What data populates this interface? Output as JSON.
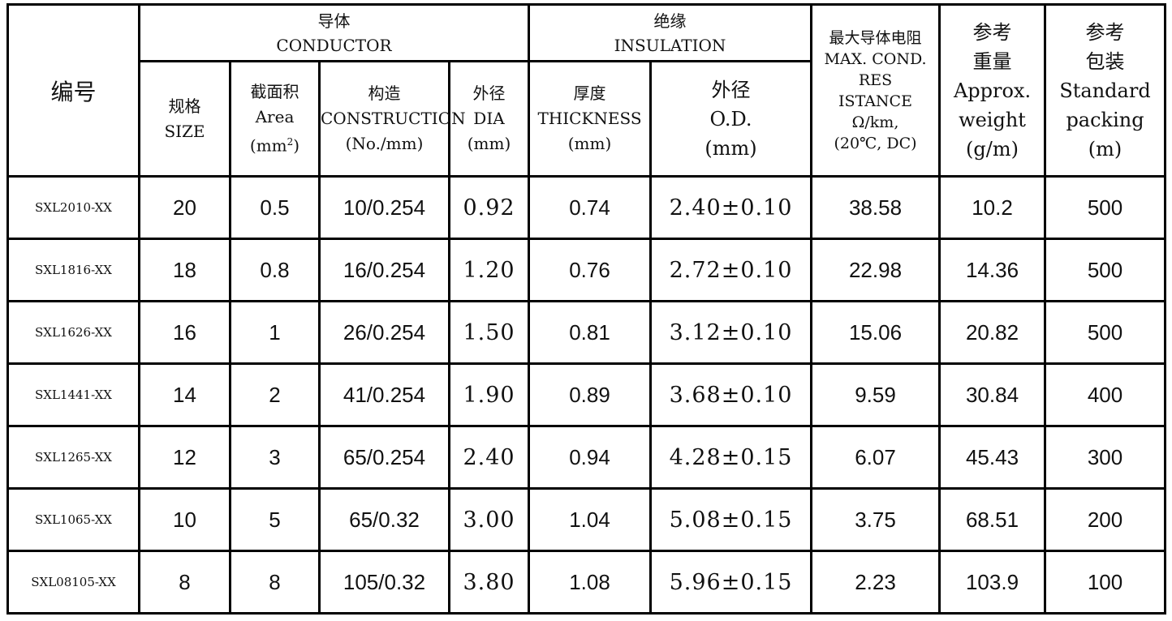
{
  "headers": {
    "code": "编号",
    "conductor": {
      "zh": "导体",
      "en": "CONDUCTOR"
    },
    "insulation": {
      "zh": "绝缘",
      "en": "INSULATION"
    },
    "resistance": {
      "line1": "最大导体电阻",
      "line2": "MAX. COND. RES",
      "line3": "ISTANCE",
      "line4": "Ω/km,",
      "line5": "(20℃, DC)"
    },
    "weight": {
      "line1": "参考",
      "line2": "重量",
      "line3": "Approx.",
      "line4": "weight",
      "line5": "(g/m)"
    },
    "packing": {
      "line1": "参考",
      "line2": "包装",
      "line3": "Standard",
      "line4": "packing",
      "line5": "(m)"
    },
    "size": {
      "zh": "规格",
      "en": "SIZE"
    },
    "area": {
      "zh": "截面积",
      "en": "Area",
      "unit_base": "(mm",
      "unit_sup": "2",
      "unit_close": ")"
    },
    "construction": {
      "zh": "构造",
      "en": "CONSTRUCTION",
      "unit": "(No./mm)"
    },
    "dia": {
      "zh": "外径",
      "en": "DIA",
      "unit": "(mm)"
    },
    "thickness": {
      "zh": "厚度",
      "en": "THICKNESS",
      "unit": "(mm)"
    },
    "od": {
      "zh": "外径",
      "en": "O.D.",
      "unit": "(mm)"
    }
  },
  "rows": [
    {
      "code": "SXL2010-XX",
      "size": "20",
      "area": "0.5",
      "construction": "10/0.254",
      "dia": "0.92",
      "thickness": "0.74",
      "od": "2.40±0.10",
      "resistance": "38.58",
      "weight": "10.2",
      "packing": "500"
    },
    {
      "code": "SXL1816-XX",
      "size": "18",
      "area": "0.8",
      "construction": "16/0.254",
      "dia": "1.20",
      "thickness": "0.76",
      "od": "2.72±0.10",
      "resistance": "22.98",
      "weight": "14.36",
      "packing": "500"
    },
    {
      "code": "SXL1626-XX",
      "size": "16",
      "area": "1",
      "construction": "26/0.254",
      "dia": "1.50",
      "thickness": "0.81",
      "od": "3.12±0.10",
      "resistance": "15.06",
      "weight": "20.82",
      "packing": "500"
    },
    {
      "code": "SXL1441-XX",
      "size": "14",
      "area": "2",
      "construction": "41/0.254",
      "dia": "1.90",
      "thickness": "0.89",
      "od": "3.68±0.10",
      "resistance": "9.59",
      "weight": "30.84",
      "packing": "400"
    },
    {
      "code": "SXL1265-XX",
      "size": "12",
      "area": "3",
      "construction": "65/0.254",
      "dia": "2.40",
      "thickness": "0.94",
      "od": "4.28±0.15",
      "resistance": "6.07",
      "weight": "45.43",
      "packing": "300"
    },
    {
      "code": "SXL1065-XX",
      "size": "10",
      "area": "5",
      "construction": "65/0.32",
      "dia": "3.00",
      "thickness": "1.04",
      "od": "5.08±0.15",
      "resistance": "3.75",
      "weight": "68.51",
      "packing": "200"
    },
    {
      "code": "SXL08105-XX",
      "size": "8",
      "area": "8",
      "construction": "105/0.32",
      "dia": "3.80",
      "thickness": "1.08",
      "od": "5.96±0.15",
      "resistance": "2.23",
      "weight": "103.9",
      "packing": "100"
    }
  ]
}
